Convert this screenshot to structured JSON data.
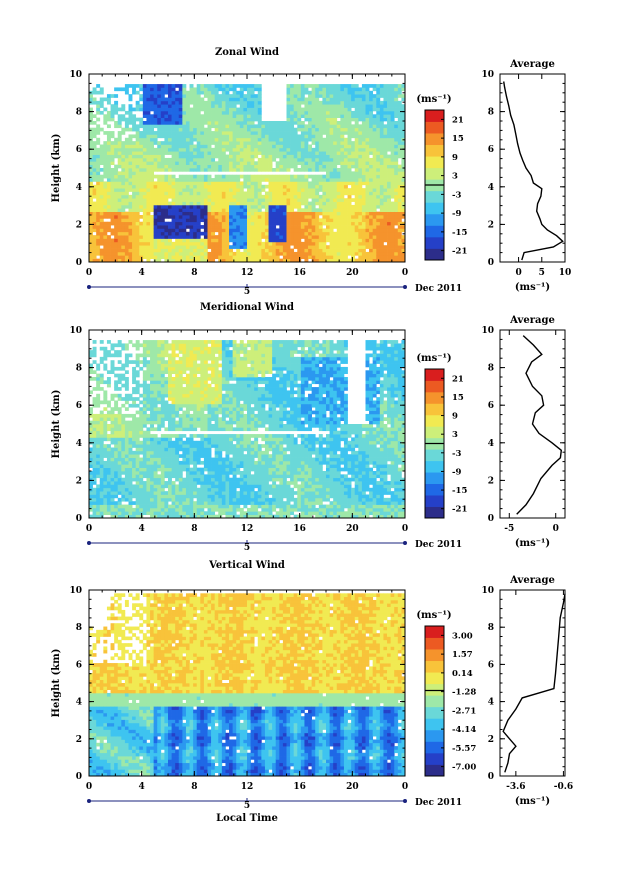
{
  "figure": {
    "date_label": "Dec 2011",
    "panels": [
      {
        "key": "zonal",
        "title": "Zonal Wind",
        "ylabel": "Height (km)",
        "xticks": [
          "0",
          "4",
          "8",
          "12",
          "16",
          "20",
          "0"
        ],
        "yticks": [
          "0",
          "2",
          "4",
          "6",
          "8",
          "10"
        ],
        "date_day": "5",
        "xlabel": "",
        "colorbar": {
          "unit": "(ms⁻¹)",
          "ticks": [
            "21",
            "15",
            "9",
            "3",
            "-3",
            "-9",
            "-15",
            "-21"
          ],
          "colors": [
            "#2c2d8a",
            "#2540c8",
            "#1f68e6",
            "#2b98f0",
            "#3ec4f0",
            "#6ad8d8",
            "#9ee8a8",
            "#cdef7a",
            "#f1ea52",
            "#f8c33a",
            "#f5932c",
            "#ec5a22",
            "#d91e1e"
          ]
        },
        "average": {
          "title": "Average",
          "xticks": [
            "0",
            "5",
            "10"
          ],
          "xlim": [
            -4,
            10
          ],
          "xlabel": "(ms⁻¹)",
          "profile": [
            [
              0.7,
              0.1
            ],
            [
              1.2,
              0.5
            ],
            [
              7.5,
              0.8
            ],
            [
              9.5,
              1.1
            ],
            [
              8.2,
              1.4
            ],
            [
              6.2,
              1.7
            ],
            [
              5.0,
              2.0
            ],
            [
              4.6,
              2.3
            ],
            [
              3.9,
              2.7
            ],
            [
              4.1,
              3.1
            ],
            [
              4.8,
              3.5
            ],
            [
              5.0,
              3.9
            ],
            [
              3.2,
              4.2
            ],
            [
              2.7,
              4.6
            ],
            [
              1.6,
              5.0
            ],
            [
              0.9,
              5.4
            ],
            [
              0.3,
              5.8
            ],
            [
              -0.2,
              6.3
            ],
            [
              -0.6,
              6.8
            ],
            [
              -1.0,
              7.3
            ],
            [
              -1.7,
              7.8
            ],
            [
              -2.1,
              8.3
            ],
            [
              -2.6,
              8.8
            ],
            [
              -3.0,
              9.3
            ],
            [
              -3.2,
              9.6
            ]
          ]
        }
      },
      {
        "key": "meridional",
        "title": "Meridional Wind",
        "ylabel": "Height (km)",
        "xticks": [
          "0",
          "4",
          "8",
          "12",
          "16",
          "20",
          "0"
        ],
        "yticks": [
          "0",
          "2",
          "4",
          "6",
          "8",
          "10"
        ],
        "date_day": "5",
        "xlabel": "",
        "colorbar": {
          "unit": "(ms⁻¹)",
          "ticks": [
            "21",
            "15",
            "9",
            "3",
            "-3",
            "-9",
            "-15",
            "-21"
          ],
          "colors": [
            "#2c2d8a",
            "#2540c8",
            "#1f68e6",
            "#2b98f0",
            "#3ec4f0",
            "#6ad8d8",
            "#9ee8a8",
            "#cdef7a",
            "#f1ea52",
            "#f8c33a",
            "#f5932c",
            "#ec5a22",
            "#d91e1e"
          ]
        },
        "average": {
          "title": "Average",
          "xticks": [
            "-5",
            "0"
          ],
          "xlim": [
            -6,
            1
          ],
          "xlabel": "(ms⁻¹)",
          "profile": [
            [
              -4.2,
              0.2
            ],
            [
              -3.2,
              0.7
            ],
            [
              -2.4,
              1.3
            ],
            [
              -1.6,
              2.1
            ],
            [
              -0.4,
              2.8
            ],
            [
              0.5,
              3.2
            ],
            [
              0.6,
              3.6
            ],
            [
              -0.4,
              4.0
            ],
            [
              -1.8,
              4.5
            ],
            [
              -2.5,
              5.0
            ],
            [
              -2.2,
              5.6
            ],
            [
              -1.3,
              6.0
            ],
            [
              -1.5,
              6.5
            ],
            [
              -2.5,
              7.0
            ],
            [
              -3.2,
              7.7
            ],
            [
              -2.6,
              8.3
            ],
            [
              -1.5,
              8.7
            ],
            [
              -2.4,
              9.2
            ],
            [
              -3.5,
              9.7
            ]
          ]
        }
      },
      {
        "key": "vertical",
        "title": "Vertical Wind",
        "ylabel": "Height (km)",
        "xticks": [
          "0",
          "4",
          "8",
          "12",
          "16",
          "20",
          "0"
        ],
        "yticks": [
          "0",
          "2",
          "4",
          "6",
          "8",
          "10"
        ],
        "date_day": "5",
        "xlabel": "Local Time",
        "colorbar": {
          "unit": "(ms⁻¹)",
          "ticks": [
            "3.00",
            "1.57",
            "0.14",
            "-1.28",
            "-2.71",
            "-4.14",
            "-5.57",
            "-7.00"
          ],
          "colors": [
            "#2c2d8a",
            "#2540c8",
            "#1f68e6",
            "#2b98f0",
            "#3ec4f0",
            "#6ad8d8",
            "#9ee8a8",
            "#cdef7a",
            "#f1ea52",
            "#f8c33a",
            "#f5932c",
            "#ec5a22",
            "#d91e1e"
          ]
        },
        "average": {
          "title": "Average",
          "xticks": [
            "-3.6",
            "-0.6"
          ],
          "xlim": [
            -4.6,
            -0.5
          ],
          "xlabel": "(ms⁻¹)",
          "profile": [
            [
              -4.3,
              0.2
            ],
            [
              -4.1,
              0.7
            ],
            [
              -4.0,
              1.2
            ],
            [
              -3.6,
              1.6
            ],
            [
              -4.0,
              2.0
            ],
            [
              -4.4,
              2.4
            ],
            [
              -4.1,
              3.0
            ],
            [
              -3.6,
              3.6
            ],
            [
              -3.2,
              4.2
            ],
            [
              -2.0,
              4.5
            ],
            [
              -1.2,
              4.7
            ],
            [
              -1.1,
              5.5
            ],
            [
              -1.0,
              6.5
            ],
            [
              -0.9,
              7.5
            ],
            [
              -0.8,
              8.5
            ],
            [
              -0.6,
              9.3
            ],
            [
              -0.5,
              9.8
            ]
          ]
        }
      }
    ]
  },
  "chart_data": [
    {
      "type": "heatmap",
      "title": "Zonal Wind",
      "xlabel": "",
      "ylabel": "Height (km)",
      "x_ticks": [
        "0",
        "4",
        "8",
        "12",
        "16",
        "20",
        "0"
      ],
      "y_ticks": [
        "0",
        "2",
        "4",
        "6",
        "8",
        "10"
      ],
      "xlim": [
        0,
        24
      ],
      "ylim": [
        0,
        10
      ],
      "date": "Dec 2011",
      "colorbar": {
        "unit": "(ms⁻¹)",
        "ticks": [
          21,
          15,
          9,
          3,
          -3,
          -9,
          -15,
          -21
        ]
      }
    },
    {
      "type": "line",
      "title": "Average",
      "xlabel": "(ms⁻¹)",
      "xlim": [
        -4,
        10
      ],
      "ylim": [
        0,
        10
      ],
      "x": [
        0.7,
        1.2,
        7.5,
        9.5,
        8.2,
        6.2,
        5.0,
        4.6,
        3.9,
        4.1,
        4.8,
        5.0,
        3.2,
        2.7,
        1.6,
        0.9,
        0.3,
        -0.2,
        -0.6,
        -1.0,
        -1.7,
        -2.1,
        -2.6,
        -3.0,
        -3.2
      ],
      "y": [
        0.1,
        0.5,
        0.8,
        1.1,
        1.4,
        1.7,
        2.0,
        2.3,
        2.7,
        3.1,
        3.5,
        3.9,
        4.2,
        4.6,
        5.0,
        5.4,
        5.8,
        6.3,
        6.8,
        7.3,
        7.8,
        8.3,
        8.8,
        9.3,
        9.6
      ]
    },
    {
      "type": "heatmap",
      "title": "Meridional Wind",
      "xlabel": "",
      "ylabel": "Height (km)",
      "x_ticks": [
        "0",
        "4",
        "8",
        "12",
        "16",
        "20",
        "0"
      ],
      "y_ticks": [
        "0",
        "2",
        "4",
        "6",
        "8",
        "10"
      ],
      "xlim": [
        0,
        24
      ],
      "ylim": [
        0,
        10
      ],
      "date": "Dec 2011",
      "colorbar": {
        "unit": "(ms⁻¹)",
        "ticks": [
          21,
          15,
          9,
          3,
          -3,
          -9,
          -15,
          -21
        ]
      }
    },
    {
      "type": "line",
      "title": "Average",
      "xlabel": "(ms⁻¹)",
      "xlim": [
        -6,
        1
      ],
      "ylim": [
        0,
        10
      ],
      "x": [
        -4.2,
        -3.2,
        -2.4,
        -1.6,
        -0.4,
        0.5,
        0.6,
        -0.4,
        -1.8,
        -2.5,
        -2.2,
        -1.3,
        -1.5,
        -2.5,
        -3.2,
        -2.6,
        -1.5,
        -2.4,
        -3.5
      ],
      "y": [
        0.2,
        0.7,
        1.3,
        2.1,
        2.8,
        3.2,
        3.6,
        4.0,
        4.5,
        5.0,
        5.6,
        6.0,
        6.5,
        7.0,
        7.7,
        8.3,
        8.7,
        9.2,
        9.7
      ]
    },
    {
      "type": "heatmap",
      "title": "Vertical Wind",
      "xlabel": "Local Time",
      "ylabel": "Height (km)",
      "x_ticks": [
        "0",
        "4",
        "8",
        "12",
        "16",
        "20",
        "0"
      ],
      "y_ticks": [
        "0",
        "2",
        "4",
        "6",
        "8",
        "10"
      ],
      "xlim": [
        0,
        24
      ],
      "ylim": [
        0,
        10
      ],
      "date": "Dec 2011",
      "colorbar": {
        "unit": "(ms⁻¹)",
        "ticks": [
          3.0,
          1.57,
          0.14,
          -1.28,
          -2.71,
          -4.14,
          -5.57,
          -7.0
        ]
      }
    },
    {
      "type": "line",
      "title": "Average",
      "xlabel": "(ms⁻¹)",
      "xlim": [
        -4.6,
        -0.5
      ],
      "ylim": [
        0,
        10
      ],
      "x": [
        -4.3,
        -4.1,
        -4.0,
        -3.6,
        -4.0,
        -4.4,
        -4.1,
        -3.6,
        -3.2,
        -2.0,
        -1.2,
        -1.1,
        -1.0,
        -0.9,
        -0.8,
        -0.6,
        -0.5
      ],
      "y": [
        0.2,
        0.7,
        1.2,
        1.6,
        2.0,
        2.4,
        3.0,
        3.6,
        4.2,
        4.5,
        4.7,
        5.5,
        6.5,
        7.5,
        8.5,
        9.3,
        9.8
      ]
    }
  ]
}
